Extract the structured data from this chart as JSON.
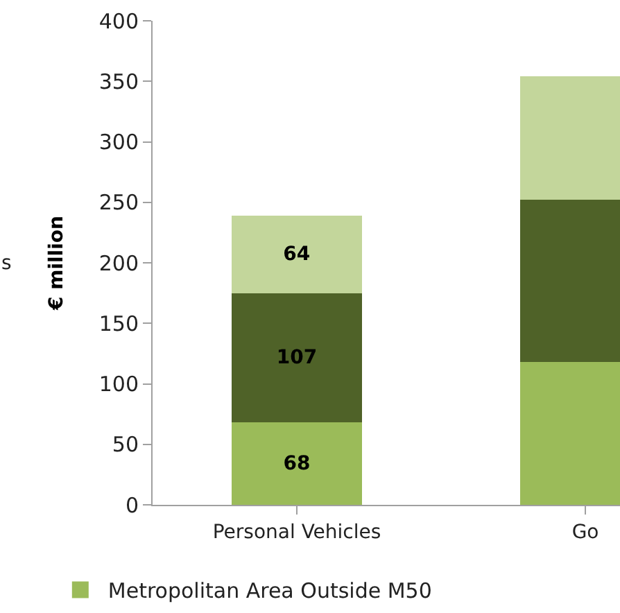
{
  "chart_data": {
    "type": "bar",
    "stacked": true,
    "ylabel": "€ million",
    "categories": [
      "Personal Vehicles",
      "Go"
    ],
    "series": [
      {
        "name": "Metropolitan Area Outside M50",
        "color": "#9bbb59",
        "values": [
          68,
          118
        ],
        "value_labels": [
          "68",
          null
        ]
      },
      {
        "color": "#4f6228",
        "values": [
          107,
          134
        ],
        "value_labels": [
          "107",
          null
        ]
      },
      {
        "color": "#c3d69b",
        "values": [
          64,
          102
        ],
        "value_labels": [
          "64",
          null
        ]
      }
    ],
    "ylim": [
      0,
      400
    ],
    "yticks": [
      0,
      50,
      100,
      150,
      200,
      250,
      300,
      350,
      400
    ],
    "annotations": [
      "s"
    ],
    "legend": "bottom"
  }
}
